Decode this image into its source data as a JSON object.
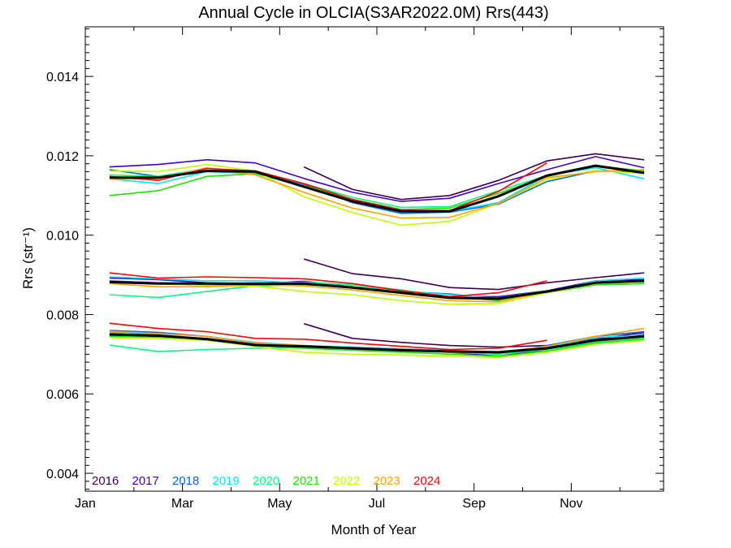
{
  "chart_data": {
    "type": "line",
    "title": "Annual Cycle in OLCIA(S3AR2022.0M) Rrs(443)",
    "xlabel": "Month of Year",
    "ylabel": "Rrs (str⁻¹)",
    "x_tick_labels": [
      "Jan",
      "Mar",
      "May",
      "Jul",
      "Sep",
      "Nov"
    ],
    "x_tick_months": [
      1,
      3,
      5,
      7,
      9,
      11
    ],
    "xlim": [
      1,
      12.9
    ],
    "y_ticks": [
      0.004,
      0.006,
      0.008,
      0.01,
      0.012,
      0.014
    ],
    "y_tick_labels": [
      "0.004",
      "0.006",
      "0.008",
      "0.010",
      "0.012",
      "0.014"
    ],
    "ylim": [
      0.00355,
      0.01525
    ],
    "grid": false,
    "legend_position": "bottom-left",
    "x_month_values": [
      1.5,
      2.5,
      3.5,
      4.5,
      5.5,
      6.5,
      7.5,
      8.5,
      9.5,
      10.5,
      11.5,
      12.5
    ],
    "groups": [
      "upper",
      "middle",
      "lower"
    ],
    "series": [
      {
        "name": "2016",
        "color": "#3d0050",
        "upper": [
          null,
          null,
          null,
          null,
          0.01172,
          0.01115,
          0.0109,
          0.011,
          0.01138,
          0.01187,
          0.01205,
          0.0119
        ],
        "middle": [
          null,
          null,
          null,
          null,
          0.0094,
          0.00903,
          0.0089,
          0.00868,
          0.00863,
          0.0088,
          0.00893,
          0.00905
        ],
        "lower": [
          null,
          null,
          null,
          null,
          0.00777,
          0.0074,
          0.0073,
          0.00722,
          0.00718,
          0.00722,
          0.00738,
          0.00755
        ]
      },
      {
        "name": "2017",
        "color": "#4000d0",
        "upper": [
          0.01172,
          0.01178,
          0.0119,
          0.01182,
          0.01143,
          0.01108,
          0.01085,
          0.01093,
          0.0113,
          0.01165,
          0.01198,
          0.0117
        ],
        "middle": [
          0.00892,
          0.00888,
          0.0088,
          0.00878,
          0.00884,
          0.0087,
          0.00855,
          0.00845,
          0.00845,
          0.0086,
          0.00885,
          0.00888
        ],
        "lower": [
          0.00748,
          0.00745,
          0.0074,
          0.00725,
          0.00718,
          0.00715,
          0.0071,
          0.00705,
          0.00695,
          0.00712,
          0.00735,
          0.0075
        ]
      },
      {
        "name": "2018",
        "color": "#0066ff",
        "upper": [
          0.01165,
          0.01148,
          0.01162,
          0.0116,
          0.01128,
          0.01082,
          0.01055,
          0.01058,
          0.01078,
          0.01135,
          0.01162,
          0.0116
        ],
        "middle": [
          0.00885,
          0.0088,
          0.00878,
          0.0088,
          0.00878,
          0.00868,
          0.00858,
          0.00852,
          0.00838,
          0.00858,
          0.00882,
          0.00882
        ],
        "lower": [
          0.0076,
          0.00755,
          0.00745,
          0.00728,
          0.0072,
          0.00718,
          0.00713,
          0.0071,
          0.007,
          0.00722,
          0.00745,
          0.00757
        ]
      },
      {
        "name": "2019",
        "color": "#00e5ff",
        "upper": [
          0.01142,
          0.0113,
          0.0116,
          0.01155,
          0.01122,
          0.01085,
          0.01063,
          0.0106,
          0.01082,
          0.0115,
          0.0117,
          0.01142
        ],
        "middle": [
          0.00895,
          0.0089,
          0.00885,
          0.00885,
          0.0088,
          0.0087,
          0.0086,
          0.0085,
          0.0084,
          0.00855,
          0.00885,
          0.00892
        ],
        "lower": [
          0.00755,
          0.00752,
          0.00745,
          0.0073,
          0.00722,
          0.00718,
          0.00712,
          0.0071,
          0.00705,
          0.00718,
          0.00742,
          0.00748
        ]
      },
      {
        "name": "2020",
        "color": "#00ff80",
        "upper": [
          0.01152,
          0.01148,
          0.01168,
          0.0116,
          0.0113,
          0.01095,
          0.0107,
          0.01072,
          0.01112,
          0.0115,
          0.01172,
          0.01162
        ],
        "middle": [
          0.0085,
          0.00843,
          0.00858,
          0.00873,
          0.00882,
          0.00875,
          0.00862,
          0.00845,
          0.00842,
          0.0086,
          0.00875,
          0.00878
        ],
        "lower": [
          0.00723,
          0.00707,
          0.00712,
          0.00715,
          0.00718,
          0.00712,
          0.00708,
          0.00705,
          0.007,
          0.00712,
          0.0073,
          0.0074
        ]
      },
      {
        "name": "2021",
        "color": "#22e000",
        "upper": [
          0.011,
          0.01112,
          0.01148,
          0.01155,
          0.01125,
          0.0109,
          0.01065,
          0.01068,
          0.01105,
          0.01148,
          0.01175,
          0.01162
        ],
        "middle": [
          0.00882,
          0.00878,
          0.00875,
          0.00872,
          0.00875,
          0.0087,
          0.00858,
          0.00845,
          0.00835,
          0.00855,
          0.00875,
          0.00878
        ],
        "lower": [
          0.00745,
          0.00742,
          0.00735,
          0.00722,
          0.00715,
          0.0071,
          0.00705,
          0.007,
          0.00695,
          0.00708,
          0.00728,
          0.00737
        ]
      },
      {
        "name": "2022",
        "color": "#c0ff00",
        "upper": [
          0.01162,
          0.0116,
          0.01178,
          0.01162,
          0.01097,
          0.01057,
          0.01025,
          0.01035,
          0.0108,
          0.0114,
          0.01163,
          0.01155
        ],
        "middle": [
          0.0088,
          0.00878,
          0.00872,
          0.00872,
          0.00858,
          0.0085,
          0.00835,
          0.00826,
          0.00828,
          0.00855,
          0.00878,
          0.00882
        ],
        "lower": [
          0.00742,
          0.0074,
          0.00735,
          0.0072,
          0.00705,
          0.007,
          0.00698,
          0.00695,
          0.00692,
          0.00705,
          0.00725,
          0.00735
        ]
      },
      {
        "name": "2023",
        "color": "#ffa000",
        "upper": [
          0.01142,
          0.01142,
          0.0117,
          0.01152,
          0.01108,
          0.01068,
          0.01043,
          0.01045,
          0.0108,
          0.01145,
          0.0116,
          0.01165
        ],
        "middle": [
          0.00878,
          0.0087,
          0.0087,
          0.00875,
          0.00872,
          0.00862,
          0.00848,
          0.00835,
          0.00832,
          0.00858,
          0.00882,
          0.00885
        ],
        "lower": [
          0.00758,
          0.00752,
          0.00745,
          0.00728,
          0.00722,
          0.00715,
          0.0071,
          0.00705,
          0.00705,
          0.0072,
          0.00745,
          0.00765
        ]
      },
      {
        "name": "2024",
        "color": "#ff0000",
        "upper": [
          0.01148,
          0.01138,
          0.01168,
          0.01162,
          0.0113,
          0.0109,
          0.01063,
          0.01062,
          0.0111,
          0.01182,
          null,
          null
        ],
        "middle": [
          0.00905,
          0.00892,
          0.00895,
          0.00893,
          0.0089,
          0.00878,
          0.0086,
          0.00845,
          0.00855,
          0.00885,
          null,
          null
        ],
        "lower": [
          0.00778,
          0.00765,
          0.00757,
          0.0074,
          0.00738,
          0.00728,
          0.0072,
          0.00712,
          0.00715,
          0.00735,
          null,
          null
        ]
      },
      {
        "name": "",
        "color": "#000000",
        "is_mean": true,
        "upper": [
          0.01145,
          0.01145,
          0.01162,
          0.0116,
          0.01122,
          0.01085,
          0.0106,
          0.0106,
          0.01098,
          0.0115,
          0.01175,
          0.01157
        ],
        "middle": [
          0.00882,
          0.00878,
          0.00878,
          0.00877,
          0.00878,
          0.00868,
          0.00855,
          0.00842,
          0.0084,
          0.00858,
          0.0088,
          0.00885
        ],
        "lower": [
          0.0075,
          0.00747,
          0.00738,
          0.00723,
          0.0072,
          0.00715,
          0.0071,
          0.00707,
          0.00705,
          0.00715,
          0.00735,
          0.00745
        ]
      }
    ]
  }
}
